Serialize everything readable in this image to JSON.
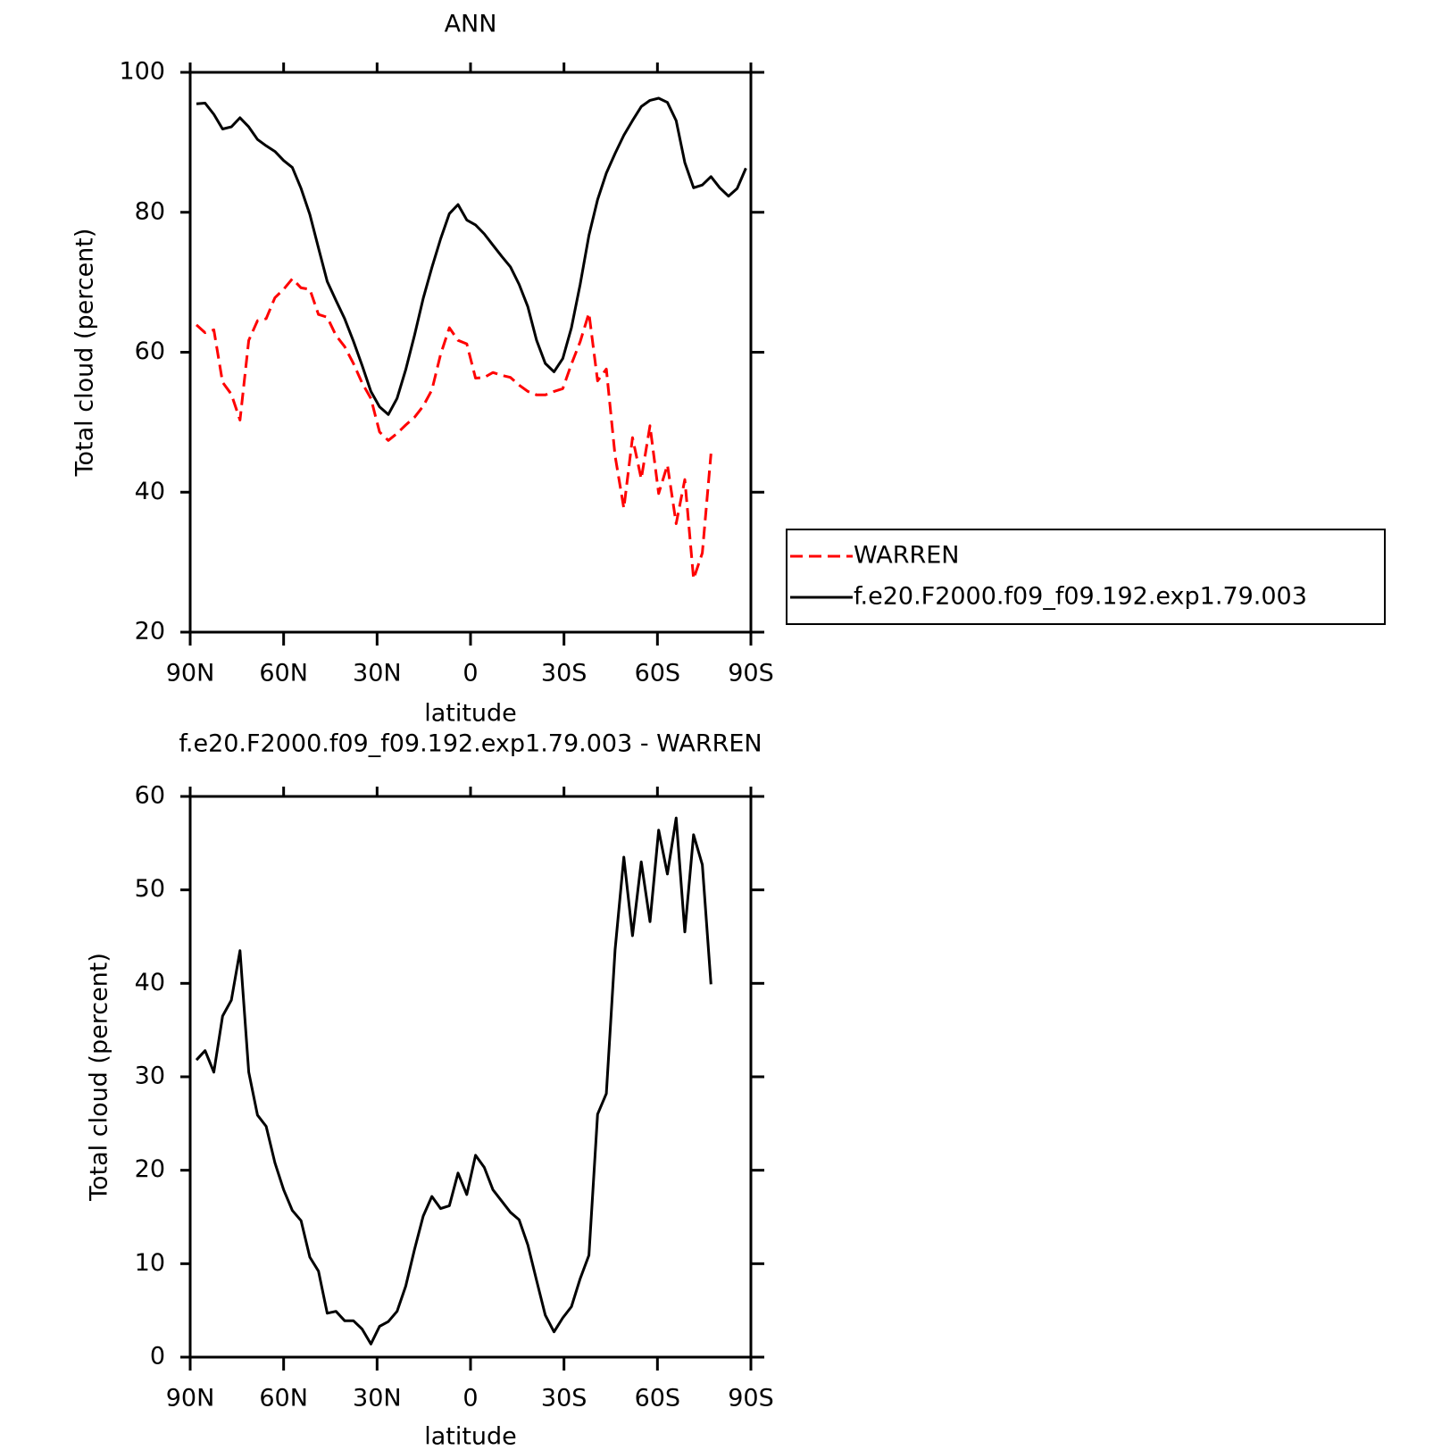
{
  "chart_data": [
    {
      "type": "line",
      "title": "ANN",
      "xlabel": "latitude",
      "ylabel": "Total cloud (percent)",
      "x": [
        88,
        85.2,
        82.4,
        79.6,
        76.8,
        74,
        71.2,
        68.4,
        65.6,
        62.8,
        60,
        57.2,
        54.4,
        51.6,
        48.8,
        46,
        43.2,
        40.4,
        37.6,
        34.8,
        32,
        29.2,
        26.4,
        23.6,
        20.8,
        18,
        15.2,
        12.4,
        9.6,
        6.8,
        4,
        1.2,
        -1.6,
        -4.4,
        -7.2,
        -10,
        -12.8,
        -15.6,
        -18.4,
        -21.2,
        -24,
        -26.8,
        -29.6,
        -32.4,
        -35.2,
        -38,
        -40.8,
        -43.6,
        -46.4,
        -49.2,
        -52,
        -54.8,
        -57.6,
        -60.4,
        -63.2,
        -66,
        -68.8,
        -71.6,
        -74.4,
        -77.2,
        -80,
        -82.8,
        -85.6,
        -88.4
      ],
      "xlim": [
        90,
        -90
      ],
      "xticks": [
        {
          "value": 90,
          "label": "90N"
        },
        {
          "value": 60,
          "label": "60N"
        },
        {
          "value": 30,
          "label": "30N"
        },
        0,
        {
          "value": -30,
          "label": "30S"
        },
        {
          "value": -60,
          "label": "60S"
        },
        {
          "value": -90,
          "label": "90S"
        }
      ],
      "ylim": [
        20,
        100
      ],
      "yticks": [
        20,
        40,
        60,
        80,
        100
      ],
      "legend": "right",
      "series": [
        {
          "name": "WARREN",
          "color": "#ff0000",
          "line_style": "dashed",
          "values": [
            63.9,
            62.8,
            63.2,
            55.7,
            54.0,
            50.3,
            61.7,
            64.5,
            64.8,
            67.8,
            69.0,
            70.5,
            69.2,
            69.0,
            65.4,
            65.0,
            62.4,
            60.8,
            58.4,
            55.6,
            53.4,
            48.6,
            47.4,
            48.4,
            49.6,
            50.7,
            52.3,
            54.6,
            59.7,
            63.5,
            61.7,
            61.2,
            56.3,
            56.4,
            57.1,
            56.7,
            56.4,
            55.3,
            54.4,
            53.9,
            53.9,
            54.4,
            54.8,
            58.3,
            61.5,
            65.6,
            55.9,
            57.6,
            45.2,
            37.7,
            47.8,
            41.9,
            49.5,
            39.8,
            43.9,
            35.5,
            41.8,
            27.6,
            31.3,
            45.5,
            null,
            null,
            null,
            null
          ]
        },
        {
          "name": "f.e20.F2000.f09_f09.192.exp1.79.003",
          "color": "#000000",
          "line_style": "solid",
          "values": [
            95.5,
            95.6,
            94.0,
            91.9,
            92.2,
            93.5,
            92.2,
            90.4,
            89.5,
            88.7,
            87.4,
            86.4,
            83.4,
            79.7,
            74.9,
            70.1,
            67.4,
            64.8,
            61.6,
            58.1,
            54.4,
            52.2,
            51.1,
            53.4,
            57.5,
            62.4,
            67.7,
            72.1,
            76.2,
            79.8,
            81.1,
            78.9,
            78.2,
            76.9,
            75.3,
            73.7,
            72.2,
            69.7,
            66.5,
            61.7,
            58.4,
            57.2,
            59.1,
            63.5,
            69.7,
            76.7,
            81.8,
            85.6,
            88.4,
            91.0,
            93.1,
            95.1,
            96.0,
            96.3,
            95.7,
            93.1,
            87.1,
            83.5,
            83.9,
            85.1,
            83.5,
            82.3,
            83.4,
            86.3
          ]
        }
      ]
    },
    {
      "type": "line",
      "title": "f.e20.F2000.f09_f09.192.exp1.79.003 - WARREN",
      "xlabel": "latitude",
      "ylabel": "Total cloud (percent)",
      "x": [
        88,
        85.2,
        82.4,
        79.6,
        76.8,
        74,
        71.2,
        68.4,
        65.6,
        62.8,
        60,
        57.2,
        54.4,
        51.6,
        48.8,
        46,
        43.2,
        40.4,
        37.6,
        34.8,
        32,
        29.2,
        26.4,
        23.6,
        20.8,
        18,
        15.2,
        12.4,
        9.6,
        6.8,
        4,
        1.2,
        -1.6,
        -4.4,
        -7.2,
        -10,
        -12.8,
        -15.6,
        -18.4,
        -21.2,
        -24,
        -26.8,
        -29.6,
        -32.4,
        -35.2,
        -38,
        -40.8,
        -43.6,
        -46.4,
        -49.2,
        -52,
        -54.8,
        -57.6,
        -60.4,
        -63.2,
        -66,
        -68.8,
        -71.6,
        -74.4,
        -77.2
      ],
      "xlim": [
        90,
        -90
      ],
      "xticks": [
        {
          "value": 90,
          "label": "90N"
        },
        {
          "value": 60,
          "label": "60N"
        },
        {
          "value": 30,
          "label": "30N"
        },
        0,
        {
          "value": -30,
          "label": "30S"
        },
        {
          "value": -60,
          "label": "60S"
        },
        {
          "value": -90,
          "label": "90S"
        }
      ],
      "ylim": [
        0,
        60
      ],
      "yticks": [
        0,
        10,
        20,
        30,
        40,
        50,
        60
      ],
      "series": [
        {
          "color": "#000000",
          "line_style": "solid",
          "values": [
            31.8,
            32.8,
            30.5,
            36.5,
            38.2,
            43.5,
            30.5,
            25.9,
            24.7,
            20.8,
            17.9,
            15.7,
            14.6,
            10.7,
            9.2,
            4.7,
            4.9,
            3.9,
            3.9,
            3.0,
            1.4,
            3.3,
            3.8,
            4.9,
            7.6,
            11.5,
            15.1,
            17.2,
            15.9,
            16.2,
            19.7,
            17.4,
            21.6,
            20.3,
            17.9,
            16.7,
            15.5,
            14.7,
            12.0,
            8.2,
            4.5,
            2.7,
            4.2,
            5.4,
            8.4,
            10.9,
            26.0,
            28.2,
            43.6,
            53.5,
            45.1,
            53.0,
            46.6,
            56.4,
            51.7,
            57.7,
            45.5,
            55.9,
            52.7,
            39.9
          ]
        }
      ]
    }
  ]
}
